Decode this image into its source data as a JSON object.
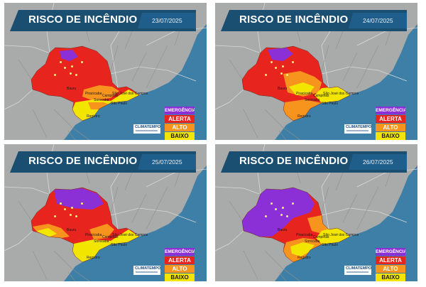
{
  "colors": {
    "ocean": "#3d7fa6",
    "land": "#a9aaaa",
    "emergencia": "#8b2fd6",
    "alerta": "#e8241e",
    "alto": "#f7941d",
    "baixo": "#f2e600",
    "banner": "#1b4f72"
  },
  "panels": [
    {
      "title": "RISCO DE INCÊNDIO",
      "date": "23/07/2025",
      "legend": [
        "EMERGÊNCIA",
        "ALERTA",
        "ALTO",
        "BAIXO"
      ],
      "logo": "CLIMATEMPO",
      "cities": [
        "Bauru",
        "Piracicaba",
        "Campinas",
        "São José dos Campos",
        "São Paulo",
        "Registro",
        "Sorocaba"
      ],
      "dominant_risk": "ALERTA"
    },
    {
      "title": "RISCO DE INCÊNDIO",
      "date": "24/07/2025",
      "legend": [
        "EMERGÊNCIA",
        "ALERTA",
        "ALTO",
        "BAIXO"
      ],
      "logo": "CLIMATEMPO",
      "cities": [
        "Bauru",
        "Piracicaba",
        "Campinas",
        "São José dos Campos",
        "São Paulo",
        "Registro",
        "Sorocaba"
      ],
      "dominant_risk": "ALERTA"
    },
    {
      "title": "RISCO DE INCÊNDIO",
      "date": "25/07/2025",
      "legend": [
        "EMERGÊNCIA",
        "ALERTA",
        "ALTO",
        "BAIXO"
      ],
      "logo": "CLIMATEMPO",
      "cities": [
        "Bauru",
        "Piracicaba",
        "Campinas",
        "São José dos Campos",
        "São Paulo",
        "Registro",
        "Sorocaba"
      ],
      "dominant_risk": "ALERTA"
    },
    {
      "title": "RISCO DE INCÊNDIO",
      "date": "26/07/2025",
      "legend": [
        "EMERGÊNCIA",
        "ALERTA",
        "ALTO",
        "BAIXO"
      ],
      "logo": "CLIMATEMPO",
      "cities": [
        "Bauru",
        "Piracicaba",
        "Campinas",
        "São José dos Campos",
        "São Paulo",
        "Registro",
        "Sorocaba"
      ],
      "dominant_risk": "EMERGÊNCIA"
    }
  ]
}
